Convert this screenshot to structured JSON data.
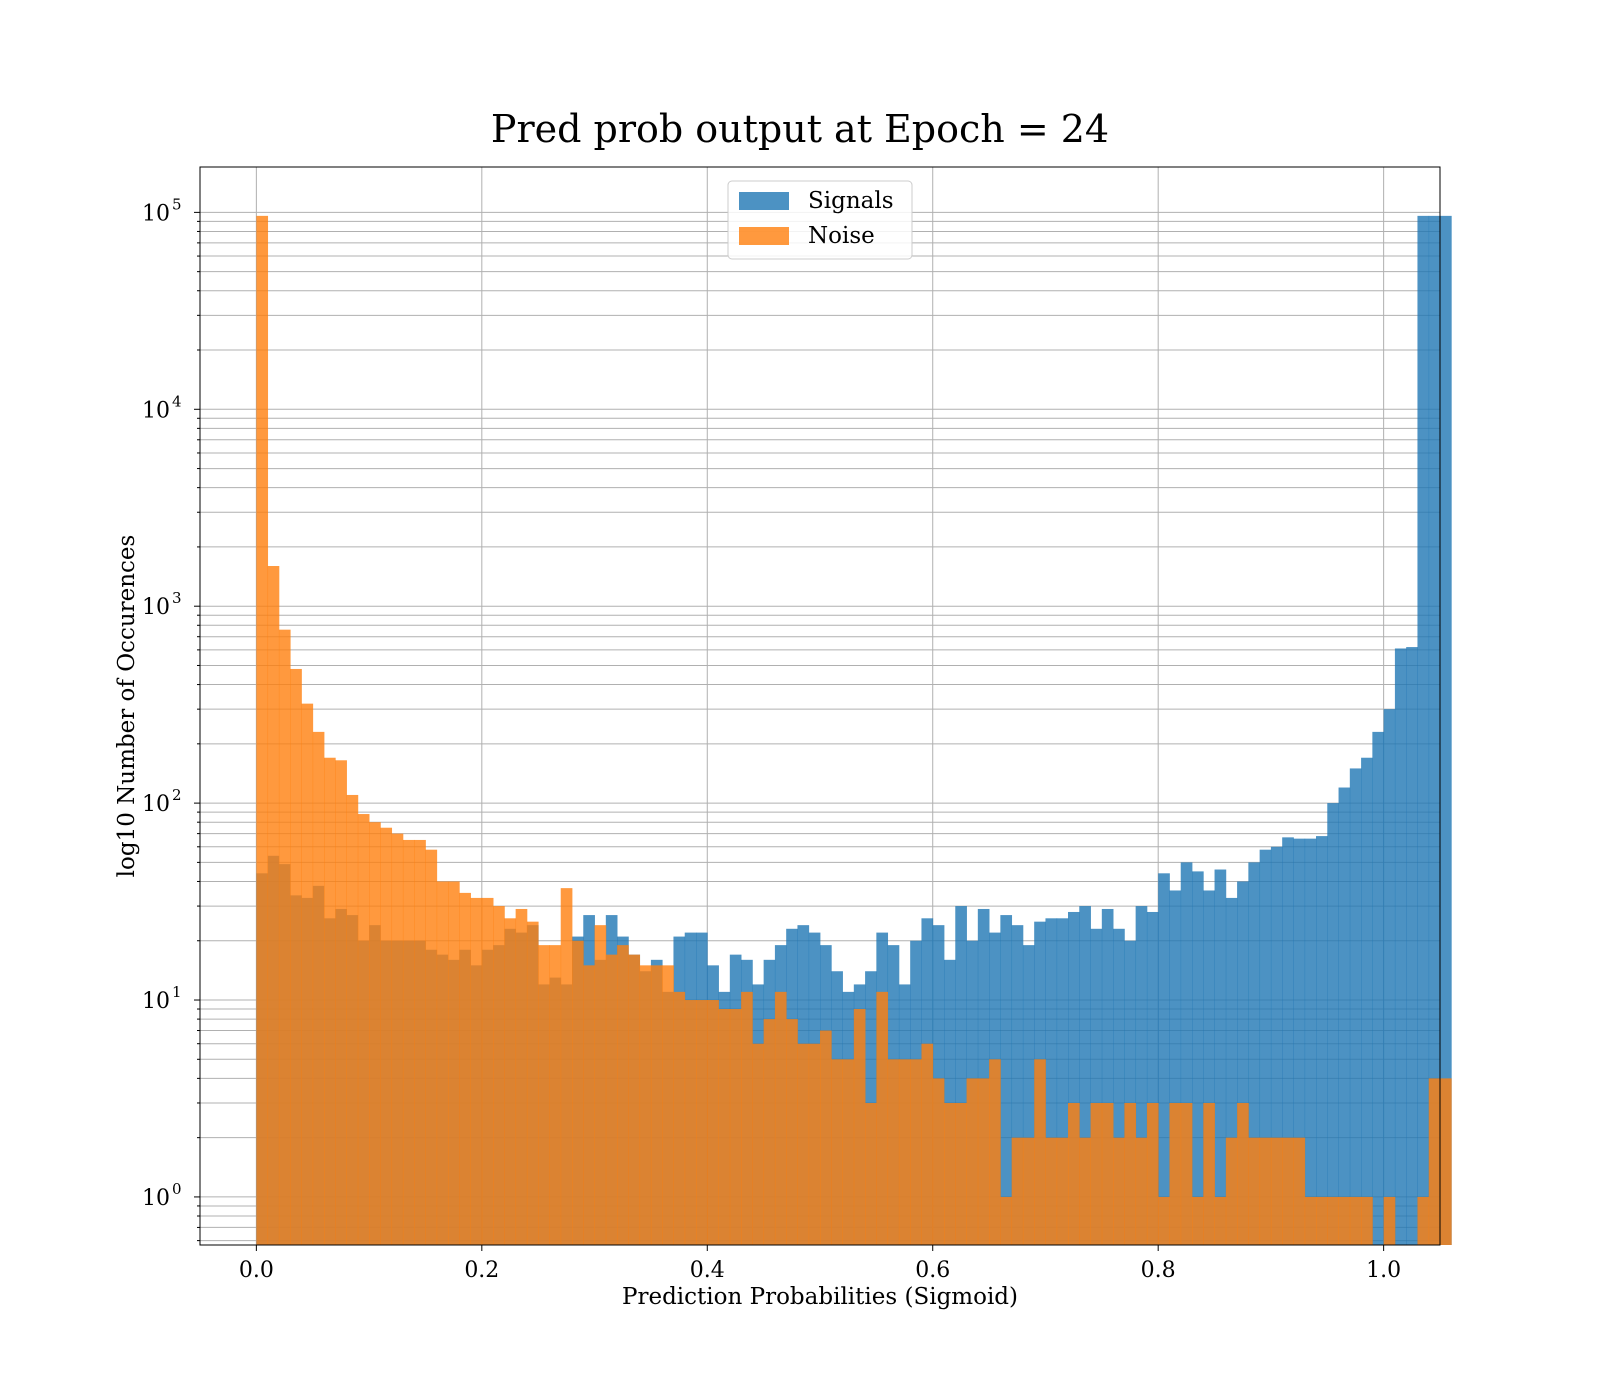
{
  "chart_data": {
    "type": "bar",
    "title": "Pred prob output at Epoch = 24",
    "xlabel": "Prediction Probabilities (Sigmoid)",
    "ylabel": "log10 Number of Occurences",
    "xlim": [
      -0.05,
      1.05
    ],
    "ylim": [
      0.57,
      170000
    ],
    "yscale": "log",
    "grid": true,
    "legend_position": "top-center",
    "bin_width": 0.01,
    "x_start": 0.0,
    "x_ticks": [
      "0.0",
      "0.2",
      "0.4",
      "0.6",
      "0.8",
      "1.0"
    ],
    "y_ticks": [
      {
        "base": "10",
        "exp": "0",
        "value": 1
      },
      {
        "base": "10",
        "exp": "1",
        "value": 10
      },
      {
        "base": "10",
        "exp": "2",
        "value": 100
      },
      {
        "base": "10",
        "exp": "3",
        "value": 1000
      },
      {
        "base": "10",
        "exp": "4",
        "value": 10000
      },
      {
        "base": "10",
        "exp": "5",
        "value": 100000
      }
    ],
    "series": [
      {
        "name": "Signals",
        "color": "#1f77b4",
        "values": [
          44,
          54,
          49,
          34,
          33,
          38,
          26,
          29,
          27,
          20,
          24,
          20,
          20,
          20,
          20,
          18,
          17,
          16,
          18,
          15,
          18,
          19,
          23,
          22,
          24,
          12,
          13,
          12,
          21,
          27,
          16,
          27,
          21,
          17,
          14,
          16,
          11,
          21,
          22,
          22,
          15,
          11,
          17,
          16,
          12,
          16,
          19,
          23,
          24,
          22,
          19,
          14,
          11,
          12,
          14,
          22,
          19,
          12,
          20,
          26,
          24,
          16,
          30,
          20,
          29,
          22,
          27,
          24,
          19,
          25,
          26,
          26,
          28,
          30,
          23,
          29,
          23,
          20,
          30,
          28,
          44,
          36,
          50,
          45,
          36,
          46,
          33,
          40,
          50,
          58,
          60,
          67,
          66,
          66,
          68,
          100,
          120,
          150,
          170,
          230,
          300,
          610,
          620,
          96000,
          96000,
          96000
        ]
      },
      {
        "name": "Noise",
        "color": "#ff7f0e",
        "values": [
          96000,
          1600,
          760,
          480,
          320,
          230,
          170,
          165,
          110,
          88,
          80,
          75,
          70,
          65,
          65,
          58,
          40,
          40,
          35,
          33,
          33,
          30,
          26,
          29,
          25,
          19,
          19,
          37,
          20,
          15,
          24,
          17,
          19,
          17,
          15,
          15,
          15,
          11,
          10,
          10,
          10,
          9,
          9,
          11,
          6,
          8,
          11,
          8,
          6,
          6,
          7,
          5,
          5,
          9,
          3,
          11,
          5,
          5,
          5,
          6,
          4,
          3,
          3,
          4,
          4,
          5,
          1,
          2,
          2,
          5,
          2,
          2,
          3,
          2,
          3,
          3,
          2,
          3,
          2,
          3,
          1,
          3,
          3,
          1,
          3,
          1,
          2,
          3,
          2,
          2,
          2,
          2,
          2,
          1,
          1,
          1,
          1,
          1,
          1,
          0.5,
          1,
          0.5,
          0.5,
          1,
          4,
          4
        ]
      }
    ]
  }
}
